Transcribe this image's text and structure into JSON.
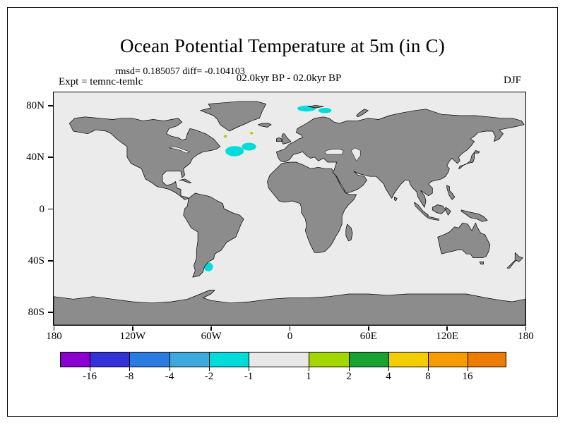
{
  "chart_data": {
    "type": "heatmap",
    "title": "Ocean Potential Temperature at 5m (in C)",
    "stats_line": "rmsd= 0.185057 diff= -0.104103",
    "experiment_label": "Expt = temnc-temlc",
    "period_label": "02.0kyr BP - 02.0kyr BP",
    "season_label": "DJF",
    "projection": "equirectangular world map of temperature difference",
    "map_extent": {
      "lon_min": -180,
      "lon_max": 180,
      "lat_min": -90,
      "lat_max": 90
    },
    "lat_ticks": [
      {
        "label": "80N",
        "lat": 80
      },
      {
        "label": "40N",
        "lat": 40
      },
      {
        "label": "0",
        "lat": 0
      },
      {
        "label": "40S",
        "lat": -40
      },
      {
        "label": "80S",
        "lat": -80
      }
    ],
    "lon_ticks": [
      {
        "label": "180",
        "lon": -180
      },
      {
        "label": "120W",
        "lon": -120
      },
      {
        "label": "60W",
        "lon": -60
      },
      {
        "label": "0",
        "lon": 0
      },
      {
        "label": "60E",
        "lon": 60
      },
      {
        "label": "120E",
        "lon": 120
      },
      {
        "label": "180",
        "lon": 180
      }
    ],
    "colors": {
      "land": "#8C8C8C",
      "ocean": "#EBEBEB",
      "coastline": "#000000"
    },
    "colorbar": {
      "position": "bottom",
      "tick_labels": [
        "-16",
        "-8",
        "-4",
        "-2",
        "-1",
        "1",
        "2",
        "4",
        "8",
        "16"
      ],
      "levels": [
        -16,
        -8,
        -4,
        -2,
        -1,
        1,
        2,
        4,
        8,
        16
      ],
      "colors": [
        "#8B00D0",
        "#3232D8",
        "#2B7CE0",
        "#3FA8DC",
        "#00DCDC",
        "#E8E8E8",
        "#A4D600",
        "#18A330",
        "#F2CE00",
        "#F79C00",
        "#EC7D00"
      ],
      "units": "C"
    },
    "anomalies": [
      {
        "region": "central North Atlantic",
        "bin": "-2 to -1",
        "color_index": 4,
        "lon": -42,
        "lat": 44.5,
        "rx": 7,
        "ry": 4
      },
      {
        "region": "North Atlantic northeast lobe",
        "bin": "-2 to -1",
        "color_index": 4,
        "lon": -31,
        "lat": 48,
        "rx": 5.5,
        "ry": 3
      },
      {
        "region": "Norwegian Sea",
        "bin": "-2 to -1",
        "color_index": 4,
        "lon": 13,
        "lat": 77.5,
        "rx": 7,
        "ry": 2.3
      },
      {
        "region": "Barents Sea",
        "bin": "-2 to -1",
        "color_index": 4,
        "lon": 27,
        "lat": 76,
        "rx": 5,
        "ry": 2
      },
      {
        "region": "Labrador Sea speck",
        "bin": "1 to 2",
        "color_index": 6,
        "lon": -49,
        "lat": 56,
        "rx": 1.3,
        "ry": 1.1
      },
      {
        "region": "mid North Atlantic speck",
        "bin": "1 to 2",
        "color_index": 6,
        "lon": -29,
        "lat": 58.5,
        "rx": 1.2,
        "ry": 1
      },
      {
        "region": "Argentine shelf",
        "bin": "-2 to -1",
        "color_index": 4,
        "lon": -62,
        "lat": -45,
        "rx": 3.5,
        "ry": 3.5
      }
    ]
  }
}
